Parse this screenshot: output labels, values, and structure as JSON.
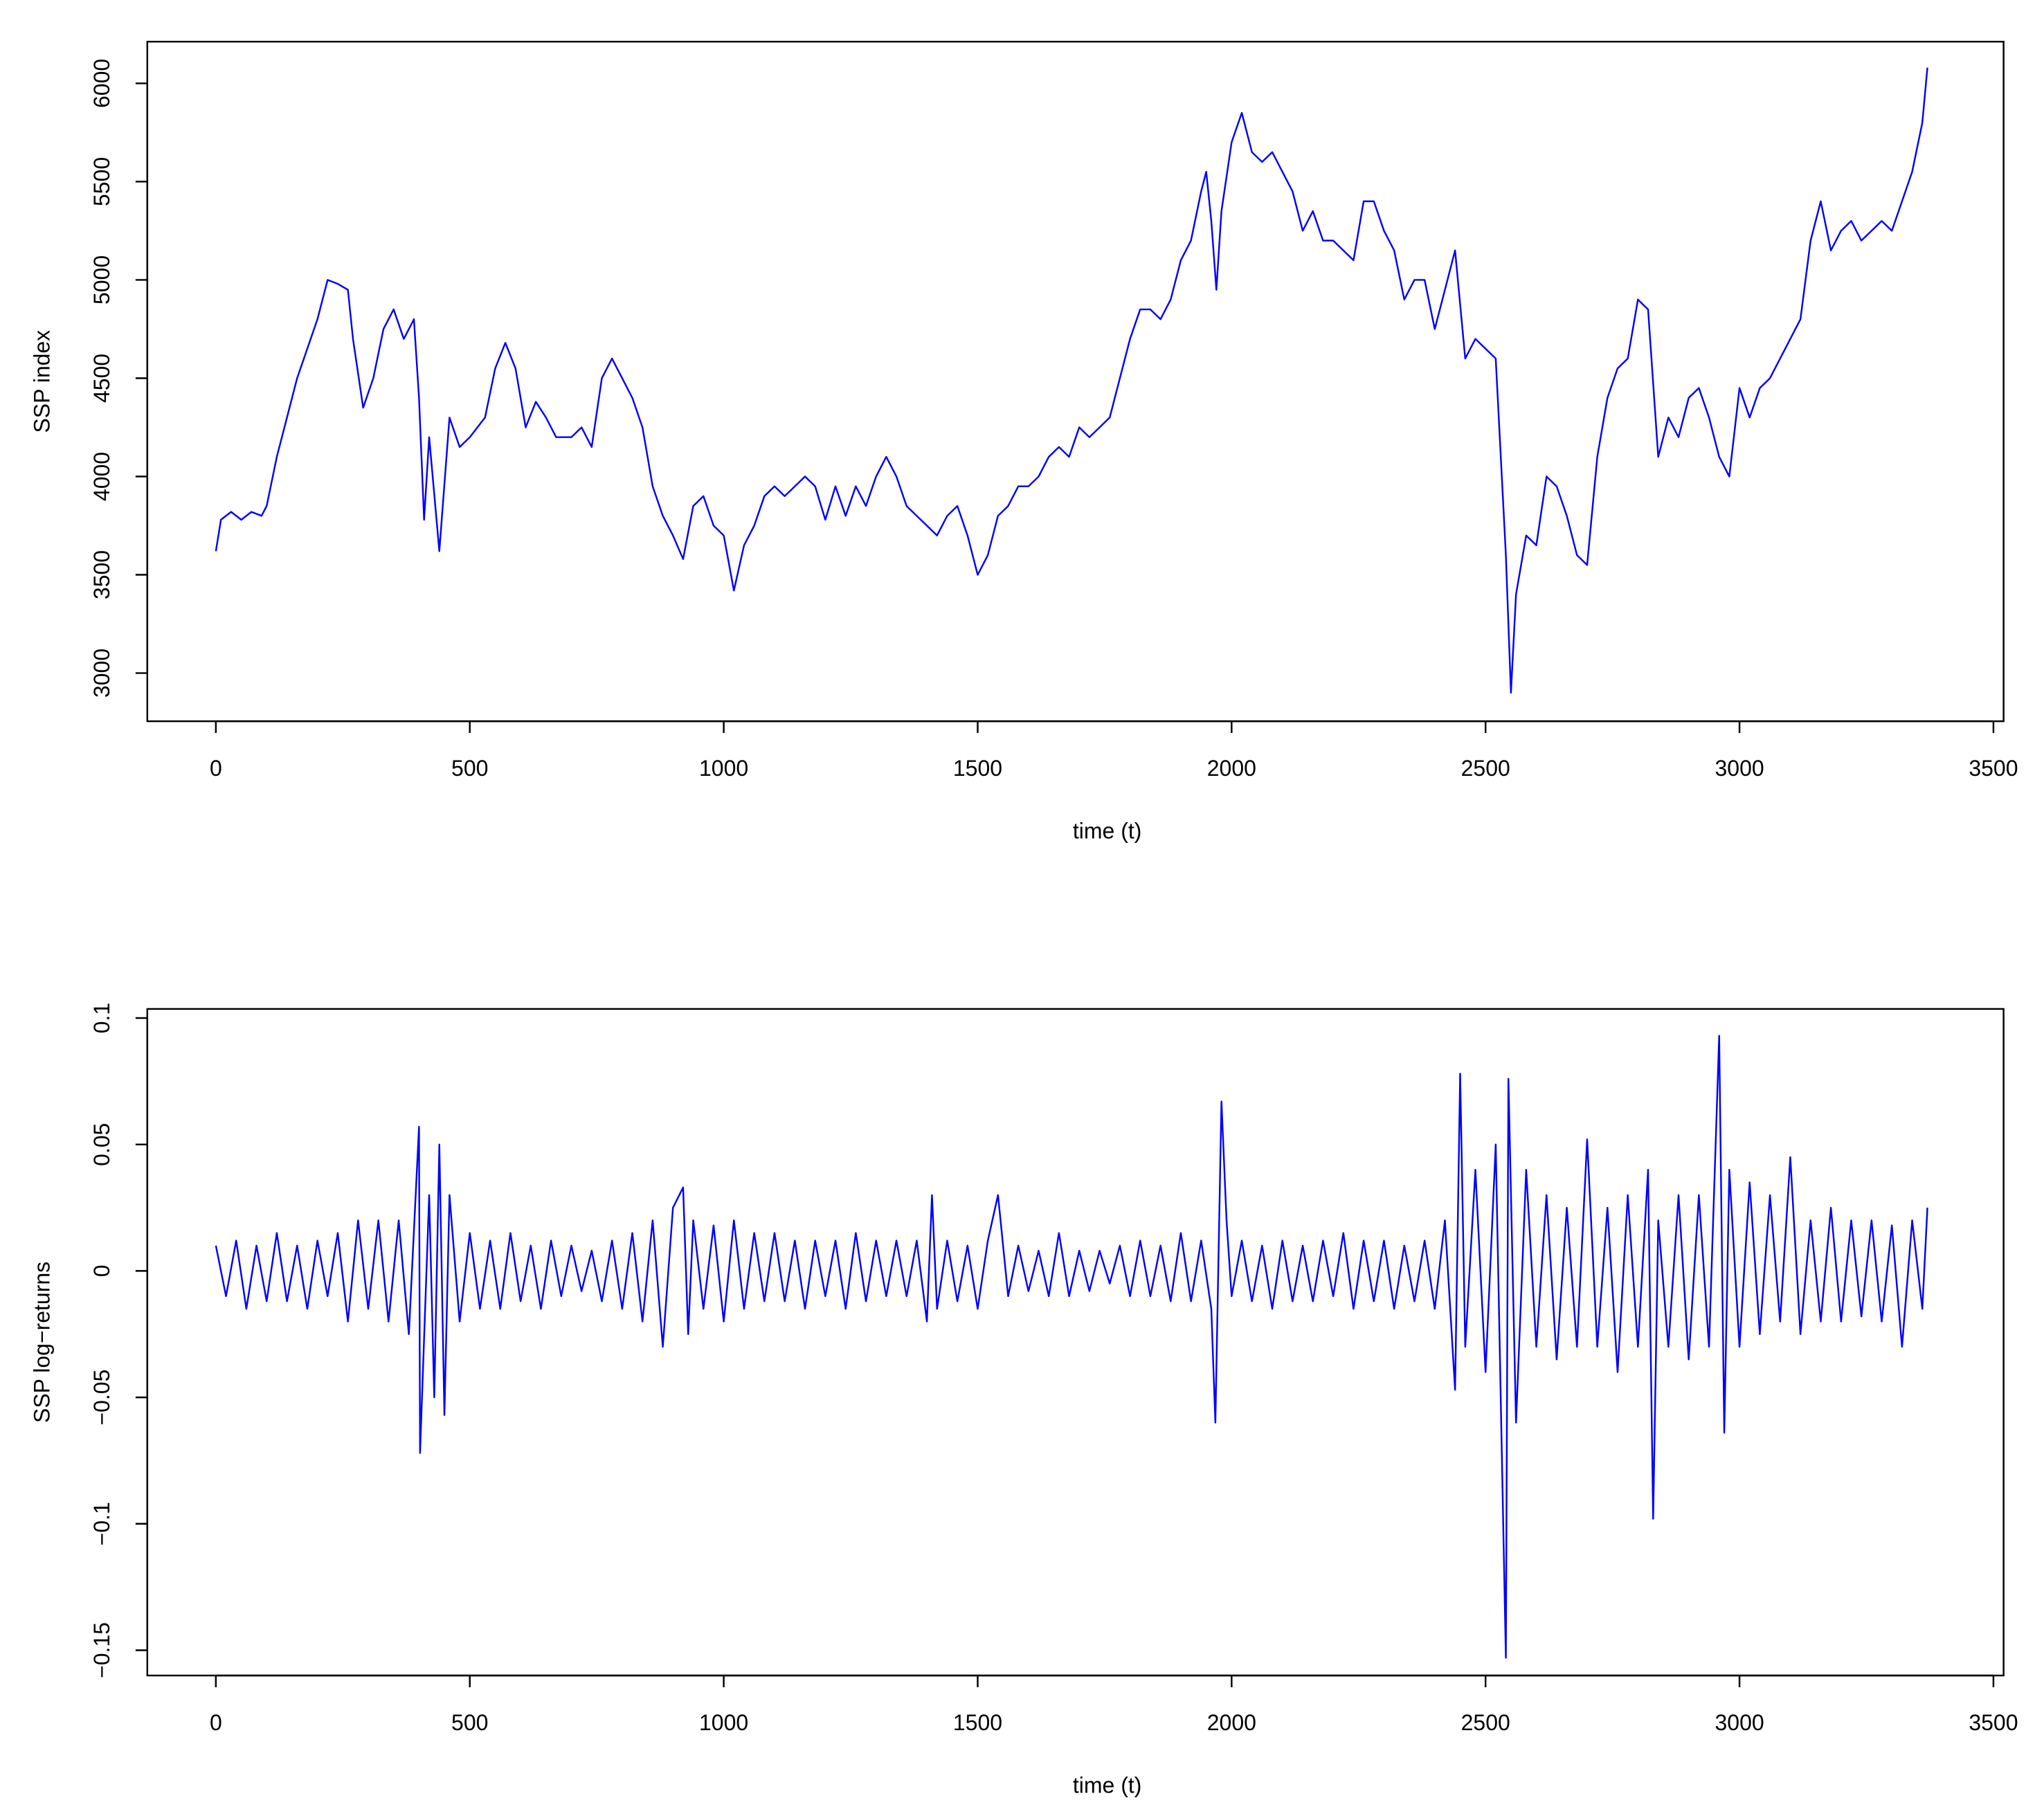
{
  "chart_data": [
    {
      "type": "line",
      "xlabel": "time (t)",
      "ylabel": "SSP index",
      "color": "#0000ff",
      "xlim": [
        -135,
        3520
      ],
      "xticks": [
        0,
        500,
        1000,
        1500,
        2000,
        2500,
        3000,
        3500
      ],
      "ylim": [
        2755,
        6212
      ],
      "yticks": [
        3000,
        3500,
        4000,
        4500,
        5000,
        5500,
        6000
      ],
      "x": [
        0,
        10,
        30,
        50,
        70,
        90,
        100,
        120,
        140,
        160,
        180,
        200,
        220,
        240,
        260,
        270,
        290,
        310,
        330,
        350,
        370,
        390,
        400,
        410,
        420,
        440,
        460,
        480,
        500,
        530,
        550,
        570,
        590,
        610,
        630,
        650,
        670,
        700,
        720,
        740,
        760,
        780,
        800,
        820,
        840,
        860,
        880,
        900,
        920,
        940,
        960,
        980,
        1000,
        1020,
        1040,
        1060,
        1080,
        1100,
        1120,
        1140,
        1160,
        1180,
        1200,
        1220,
        1240,
        1260,
        1280,
        1300,
        1320,
        1340,
        1360,
        1380,
        1400,
        1420,
        1440,
        1460,
        1480,
        1500,
        1520,
        1540,
        1560,
        1580,
        1600,
        1620,
        1640,
        1660,
        1680,
        1700,
        1720,
        1740,
        1760,
        1780,
        1800,
        1820,
        1840,
        1860,
        1880,
        1900,
        1920,
        1940,
        1950,
        1960,
        1970,
        1980,
        2000,
        2020,
        2040,
        2060,
        2080,
        2100,
        2120,
        2140,
        2160,
        2180,
        2200,
        2220,
        2240,
        2260,
        2280,
        2300,
        2320,
        2340,
        2360,
        2380,
        2400,
        2420,
        2440,
        2460,
        2480,
        2500,
        2520,
        2540,
        2550,
        2560,
        2580,
        2600,
        2620,
        2640,
        2660,
        2680,
        2700,
        2720,
        2740,
        2760,
        2780,
        2800,
        2820,
        2840,
        2860,
        2880,
        2900,
        2920,
        2940,
        2960,
        2980,
        3000,
        3020,
        3040,
        3060,
        3080,
        3100,
        3120,
        3140,
        3160,
        3180,
        3200,
        3220,
        3240,
        3260,
        3280,
        3300,
        3320,
        3340,
        3360,
        3370
      ],
      "values": [
        3620,
        3780,
        3820,
        3780,
        3820,
        3800,
        3850,
        4100,
        4300,
        4500,
        4650,
        4800,
        5000,
        4980,
        4950,
        4700,
        4350,
        4500,
        4750,
        4850,
        4700,
        4800,
        4400,
        3780,
        4200,
        3620,
        4300,
        4150,
        4200,
        4300,
        4550,
        4680,
        4550,
        4250,
        4380,
        4300,
        4200,
        4200,
        4250,
        4150,
        4500,
        4600,
        4500,
        4400,
        4250,
        3950,
        3800,
        3700,
        3580,
        3850,
        3900,
        3750,
        3700,
        3420,
        3650,
        3750,
        3900,
        3950,
        3900,
        3950,
        4000,
        3950,
        3780,
        3950,
        3800,
        3950,
        3850,
        4000,
        4100,
        4000,
        3850,
        3800,
        3750,
        3700,
        3800,
        3850,
        3700,
        3500,
        3600,
        3800,
        3850,
        3950,
        3950,
        4000,
        4100,
        4150,
        4100,
        4250,
        4200,
        4250,
        4300,
        4500,
        4700,
        4850,
        4850,
        4800,
        4900,
        5100,
        5200,
        5450,
        5550,
        5300,
        4950,
        5350,
        5700,
        5850,
        5650,
        5600,
        5650,
        5550,
        5450,
        5250,
        5350,
        5200,
        5200,
        5150,
        5100,
        5400,
        5400,
        5250,
        5150,
        4900,
        5000,
        5000,
        4750,
        4950,
        5150,
        4600,
        4700,
        4650,
        4600,
        3600,
        2900,
        3400,
        3700,
        3650,
        4000,
        3950,
        3800,
        3600,
        3550,
        4100,
        4400,
        4550,
        4600,
        4900,
        4850,
        4100,
        4300,
        4200,
        4400,
        4450,
        4300,
        4100,
        4000,
        4450,
        4300,
        4450,
        4500,
        4600,
        4700,
        4800,
        5200,
        5400,
        5150,
        5250,
        5300,
        5200,
        5250,
        5300,
        5250,
        5400,
        5550,
        5800,
        6080
      ]
    },
    {
      "type": "line",
      "xlabel": "time (t)",
      "ylabel": "SSP log−returns",
      "color": "#0000ff",
      "xlim": [
        -135,
        3520
      ],
      "xticks": [
        0,
        500,
        1000,
        1500,
        2000,
        2500,
        3000,
        3500
      ],
      "ylim": [
        -0.16,
        0.1036
      ],
      "yticks": [
        {
          "value": -0.15,
          "label": "−0.15"
        },
        {
          "value": -0.1,
          "label": "−0.1"
        },
        {
          "value": -0.05,
          "label": "−0.05"
        },
        0,
        0.05,
        0.1
      ],
      "x": [
        0,
        20,
        40,
        60,
        80,
        100,
        120,
        140,
        160,
        180,
        200,
        220,
        240,
        260,
        280,
        300,
        320,
        340,
        360,
        380,
        400,
        402,
        420,
        430,
        440,
        450,
        460,
        480,
        500,
        520,
        540,
        560,
        580,
        600,
        620,
        640,
        660,
        680,
        700,
        720,
        740,
        760,
        780,
        800,
        820,
        840,
        860,
        880,
        900,
        920,
        930,
        940,
        960,
        980,
        1000,
        1020,
        1040,
        1060,
        1080,
        1100,
        1120,
        1140,
        1160,
        1180,
        1200,
        1220,
        1240,
        1260,
        1280,
        1300,
        1320,
        1340,
        1360,
        1380,
        1400,
        1410,
        1420,
        1440,
        1460,
        1480,
        1500,
        1520,
        1540,
        1560,
        1580,
        1600,
        1620,
        1640,
        1660,
        1680,
        1700,
        1720,
        1740,
        1760,
        1780,
        1800,
        1820,
        1840,
        1860,
        1880,
        1900,
        1920,
        1940,
        1960,
        1968,
        1980,
        1990,
        2000,
        2020,
        2040,
        2060,
        2080,
        2100,
        2120,
        2140,
        2160,
        2180,
        2200,
        2220,
        2240,
        2260,
        2280,
        2300,
        2320,
        2340,
        2360,
        2380,
        2400,
        2420,
        2440,
        2450,
        2460,
        2480,
        2500,
        2520,
        2540,
        2545,
        2560,
        2580,
        2600,
        2620,
        2640,
        2660,
        2680,
        2700,
        2720,
        2740,
        2760,
        2780,
        2800,
        2820,
        2830,
        2840,
        2860,
        2880,
        2900,
        2920,
        2940,
        2960,
        2970,
        2980,
        3000,
        3020,
        3040,
        3060,
        3080,
        3100,
        3120,
        3140,
        3160,
        3180,
        3200,
        3220,
        3240,
        3260,
        3280,
        3300,
        3320,
        3340,
        3360,
        3370
      ],
      "values": [
        0.01,
        -0.01,
        0.012,
        -0.015,
        0.01,
        -0.012,
        0.015,
        -0.012,
        0.01,
        -0.015,
        0.012,
        -0.01,
        0.015,
        -0.02,
        0.02,
        -0.015,
        0.02,
        -0.02,
        0.02,
        -0.025,
        0.057,
        -0.072,
        0.03,
        -0.05,
        0.05,
        -0.057,
        0.03,
        -0.02,
        0.015,
        -0.015,
        0.012,
        -0.015,
        0.015,
        -0.012,
        0.01,
        -0.015,
        0.012,
        -0.01,
        0.01,
        -0.008,
        0.008,
        -0.012,
        0.012,
        -0.015,
        0.015,
        -0.02,
        0.02,
        -0.03,
        0.025,
        0.033,
        -0.025,
        0.02,
        -0.015,
        0.018,
        -0.02,
        0.02,
        -0.015,
        0.015,
        -0.012,
        0.015,
        -0.012,
        0.012,
        -0.015,
        0.012,
        -0.01,
        0.012,
        -0.015,
        0.015,
        -0.012,
        0.012,
        -0.01,
        0.012,
        -0.01,
        0.012,
        -0.02,
        0.03,
        -0.015,
        0.012,
        -0.012,
        0.01,
        -0.015,
        0.012,
        0.03,
        -0.01,
        0.01,
        -0.008,
        0.008,
        -0.01,
        0.015,
        -0.01,
        0.008,
        -0.008,
        0.008,
        -0.005,
        0.01,
        -0.01,
        0.012,
        -0.01,
        0.01,
        -0.012,
        0.015,
        -0.012,
        0.012,
        -0.015,
        -0.06,
        0.067,
        0.02,
        -0.01,
        0.012,
        -0.012,
        0.01,
        -0.015,
        0.012,
        -0.012,
        0.01,
        -0.012,
        0.012,
        -0.01,
        0.015,
        -0.015,
        0.012,
        -0.012,
        0.012,
        -0.015,
        0.01,
        -0.012,
        0.012,
        -0.015,
        0.02,
        -0.047,
        0.078,
        -0.03,
        0.04,
        -0.04,
        0.05,
        -0.153,
        0.076,
        -0.06,
        0.04,
        -0.03,
        0.03,
        -0.035,
        0.025,
        -0.03,
        0.052,
        -0.03,
        0.025,
        -0.04,
        0.03,
        -0.03,
        0.04,
        -0.098,
        0.02,
        -0.03,
        0.03,
        -0.035,
        0.03,
        -0.03,
        0.093,
        -0.064,
        0.04,
        -0.03,
        0.035,
        -0.025,
        0.03,
        -0.02,
        0.045,
        -0.025,
        0.02,
        -0.02,
        0.025,
        -0.02,
        0.02,
        -0.018,
        0.02,
        -0.02,
        0.018,
        -0.03,
        0.02,
        -0.015,
        0.025
      ]
    }
  ]
}
